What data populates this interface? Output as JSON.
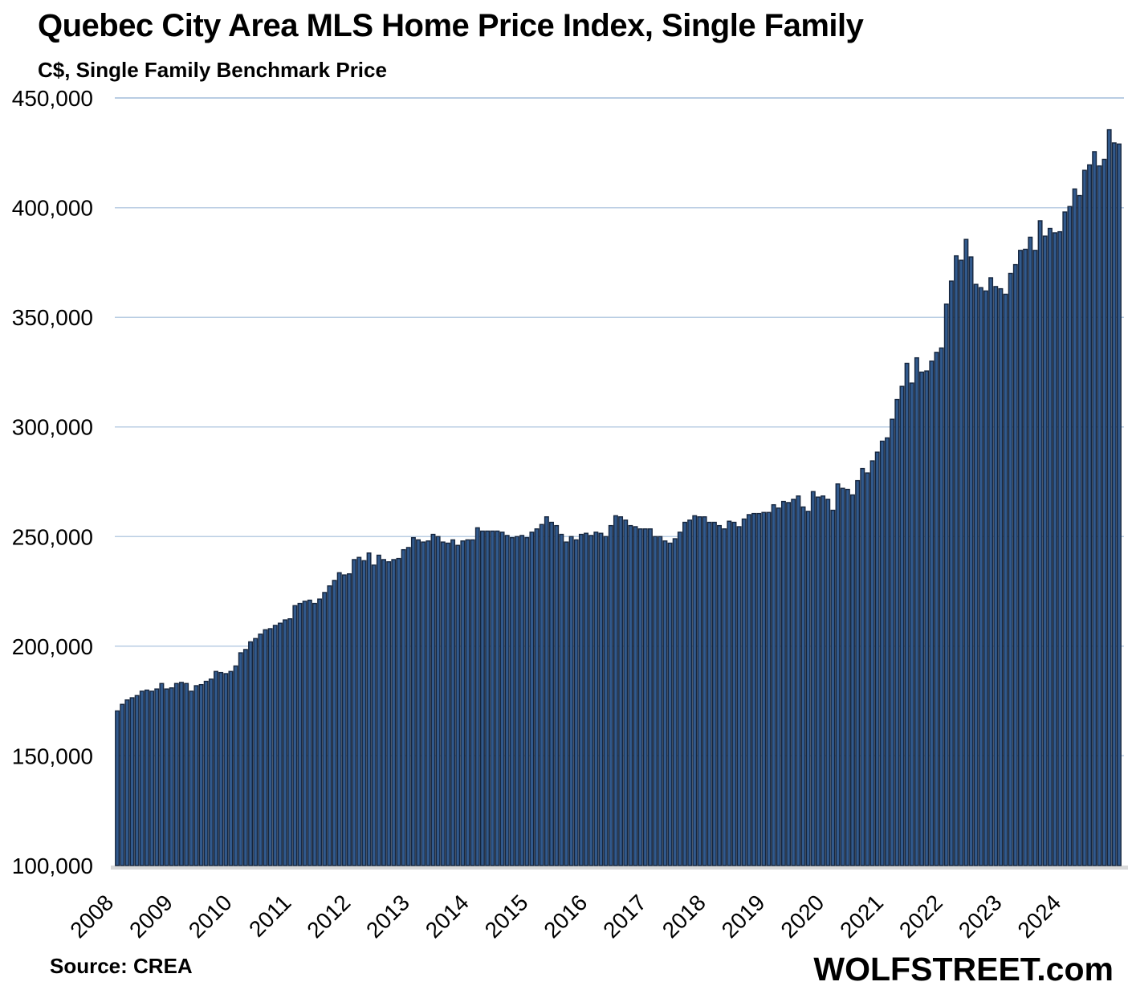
{
  "header": {
    "title": "Quebec City Area MLS Home Price Index, Single Family",
    "subtitle": "C$, Single Family Benchmark Price"
  },
  "footer": {
    "source": "Source: CREA",
    "brand": "WOLFSTREET.com"
  },
  "chart_data": {
    "type": "bar",
    "title": "Quebec City Area MLS Home Price Index, Single Family",
    "ylabel": "C$, Single Family Benchmark Price",
    "xlabel": "",
    "ylim": [
      100000,
      450000
    ],
    "grid": "horizontal",
    "legend": "none",
    "colors": {
      "bar_fill": "#31598C",
      "bar_stroke": "#16263E",
      "gridline": "#B9CDE3",
      "baseline_band": "#D9D9D9",
      "text": "#000000"
    },
    "y_ticks": [
      {
        "value": 450000,
        "label": "450,000"
      },
      {
        "value": 400000,
        "label": "400,000"
      },
      {
        "value": 350000,
        "label": "350,000"
      },
      {
        "value": 300000,
        "label": "300,000"
      },
      {
        "value": 250000,
        "label": "250,000"
      },
      {
        "value": 200000,
        "label": "200,000"
      },
      {
        "value": 150000,
        "label": "150,000"
      },
      {
        "value": 100000,
        "label": "100,000"
      }
    ],
    "x_year_labels": [
      "2008",
      "2009",
      "2010",
      "2011",
      "2012",
      "2013",
      "2014",
      "2015",
      "2016",
      "2017",
      "2018",
      "2019",
      "2020",
      "2021",
      "2022",
      "2023",
      "2024"
    ],
    "months_per_year": 12,
    "start_month": "2008-01",
    "end_month": "2024-12",
    "values": [
      170500,
      173500,
      175500,
      176500,
      177500,
      179500,
      180000,
      179500,
      180500,
      183000,
      180500,
      181000,
      183000,
      183500,
      183000,
      179500,
      182000,
      182500,
      184000,
      185000,
      188500,
      188000,
      187500,
      188500,
      191000,
      197000,
      198500,
      202000,
      203500,
      205500,
      207500,
      208000,
      209500,
      210500,
      212000,
      212500,
      218500,
      219500,
      220500,
      221000,
      219500,
      221500,
      224500,
      227500,
      230000,
      233500,
      232500,
      233000,
      239500,
      240500,
      239000,
      242500,
      237000,
      241500,
      239500,
      238500,
      239500,
      240000,
      244000,
      245000,
      249500,
      248500,
      247500,
      248000,
      251000,
      250000,
      247500,
      247000,
      248500,
      246000,
      248000,
      248500,
      248500,
      254000,
      252500,
      252500,
      252500,
      252500,
      252000,
      250500,
      249500,
      250000,
      250500,
      249500,
      252000,
      253500,
      255500,
      259000,
      256500,
      255000,
      251000,
      247500,
      250000,
      248500,
      251000,
      251500,
      250500,
      252000,
      251500,
      250000,
      255000,
      259500,
      259000,
      257500,
      255000,
      254500,
      253500,
      253500,
      253500,
      250000,
      250000,
      248000,
      247000,
      249000,
      252000,
      256500,
      257500,
      259500,
      259000,
      259000,
      256500,
      256500,
      255000,
      253500,
      257000,
      256500,
      254500,
      258000,
      260000,
      260500,
      260500,
      261000,
      261000,
      264500,
      263000,
      266000,
      265500,
      267000,
      268500,
      263500,
      261500,
      270500,
      268000,
      268500,
      267000,
      262000,
      274000,
      272000,
      271500,
      269000,
      275500,
      281000,
      279000,
      284500,
      288500,
      293500,
      295000,
      303500,
      312500,
      318500,
      329000,
      320000,
      331500,
      325000,
      325500,
      330000,
      334000,
      336000,
      356000,
      366500,
      378000,
      376000,
      385500,
      377500,
      365000,
      363500,
      362000,
      368000,
      364000,
      363000,
      360500,
      370000,
      374000,
      380500,
      381000,
      386500,
      380500,
      394000,
      387000,
      390500,
      388500,
      389000,
      398000,
      400500,
      408500,
      405500,
      417000,
      419500,
      425500,
      419000,
      422000,
      435500,
      429500,
      429000
    ]
  }
}
